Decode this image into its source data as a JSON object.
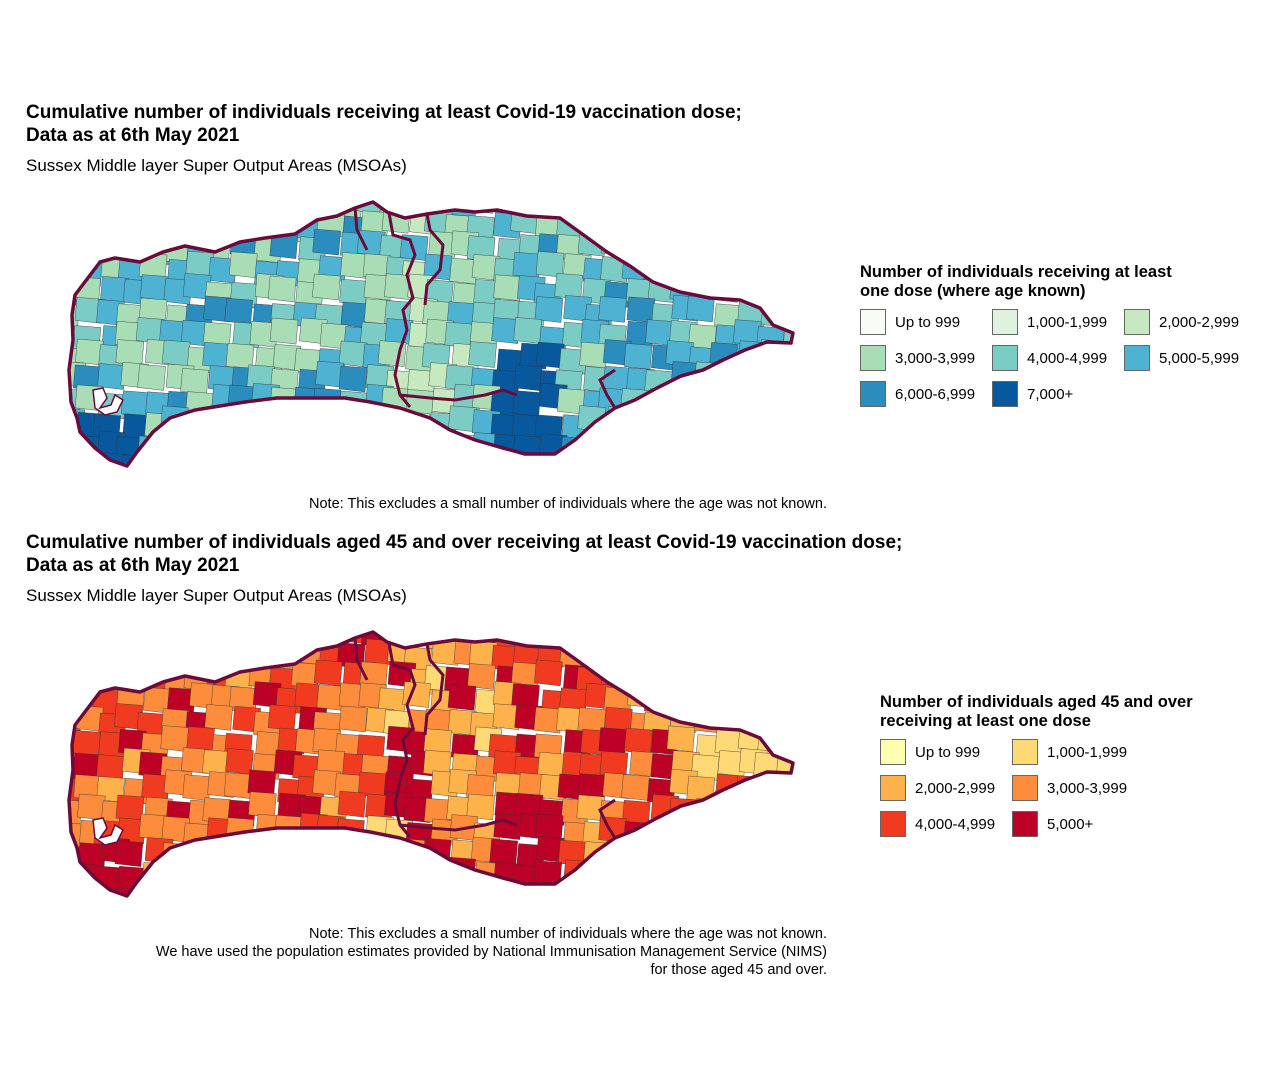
{
  "map1": {
    "title_line1": "Cumulative number of individuals receiving at least Covid-19 vaccination dose;",
    "title_line2": "Data as at 6th May 2021",
    "subtitle": "Sussex Middle layer Super Output Areas (MSOAs)",
    "note_lines": [
      "Note: This excludes a small number of individuals where the age was not known."
    ],
    "legend": {
      "title_line1": "Number of individuals receiving at least",
      "title_line2": "one dose (where age known)",
      "items": [
        {
          "label": "Up to 999",
          "color": "#f7fcf5"
        },
        {
          "label": "1,000-1,999",
          "color": "#dff2de"
        },
        {
          "label": "2,000-2,999",
          "color": "#c7e9c0"
        },
        {
          "label": "3,000-3,999",
          "color": "#a8ddb5"
        },
        {
          "label": "4,000-4,999",
          "color": "#7bccc4"
        },
        {
          "label": "5,000-5,999",
          "color": "#4eb3d3"
        },
        {
          "label": "6,000-6,999",
          "color": "#2b8cbe"
        },
        {
          "label": "7,000+",
          "color": "#08589e"
        }
      ]
    }
  },
  "map2": {
    "title_line1": "Cumulative number of individuals aged 45 and over receiving at least Covid-19 vaccination dose;",
    "title_line2": "Data as at 6th May 2021",
    "subtitle": "Sussex Middle layer Super Output Areas (MSOAs)",
    "note_lines": [
      "Note: This excludes a small number of individuals where the age was not known.",
      "We have used the population estimates provided by National Immunisation Management Service (NIMS)",
      "for those aged 45 and over."
    ],
    "legend": {
      "title_line1": "Number of individuals aged 45 and over",
      "title_line2": "receiving at least one dose",
      "items": [
        {
          "label": "Up to 999",
          "color": "#ffffb2"
        },
        {
          "label": "1,000-1,999",
          "color": "#fed976"
        },
        {
          "label": "2,000-2,999",
          "color": "#feb24c"
        },
        {
          "label": "3,000-3,999",
          "color": "#fd8d3c"
        },
        {
          "label": "4,000-4,999",
          "color": "#f03b20"
        },
        {
          "label": "5,000+",
          "color": "#bd0026"
        }
      ]
    }
  },
  "boundary_color": "#6b0b3b"
}
